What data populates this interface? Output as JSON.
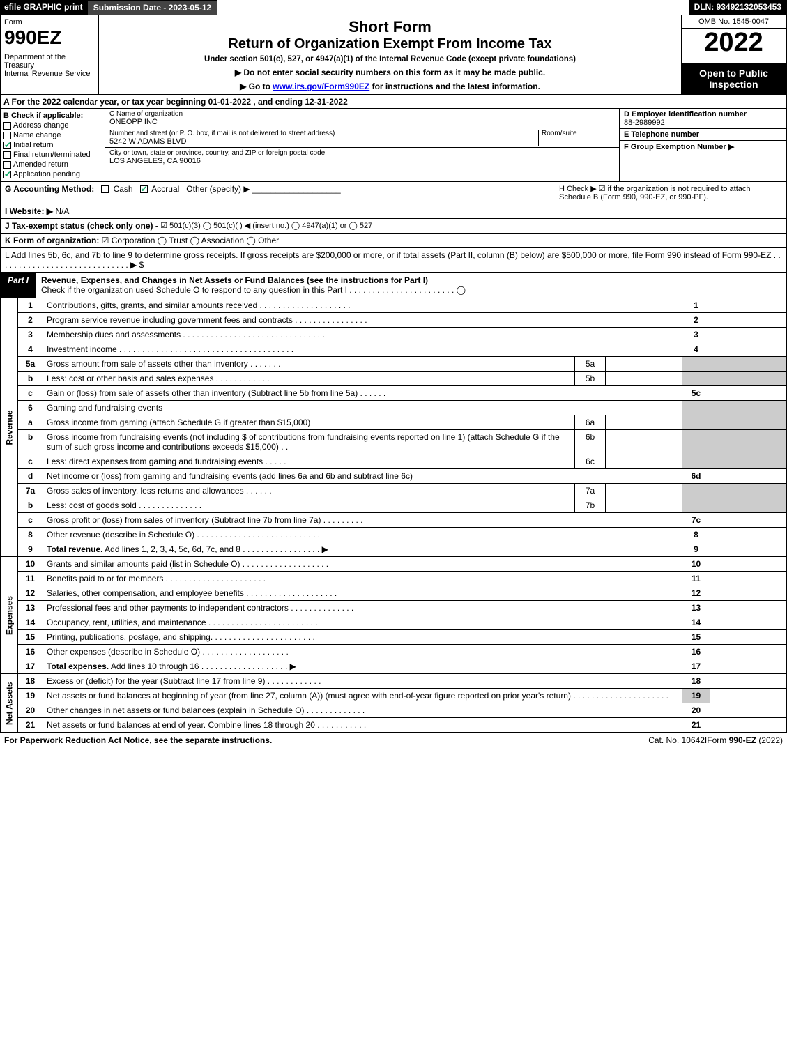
{
  "topbar": {
    "efile": "efile GRAPHIC print",
    "submission": "Submission Date - 2023-05-12",
    "dln": "DLN: 93492132053453"
  },
  "header": {
    "form_label": "Form",
    "form_number": "990EZ",
    "dept": "Department of the Treasury\nInternal Revenue Service",
    "title1": "Short Form",
    "title2": "Return of Organization Exempt From Income Tax",
    "subtitle": "Under section 501(c), 527, or 4947(a)(1) of the Internal Revenue Code (except private foundations)",
    "note1": "▶ Do not enter social security numbers on this form as it may be made public.",
    "note2_pre": "▶ Go to ",
    "note2_link": "www.irs.gov/Form990EZ",
    "note2_post": " for instructions and the latest information.",
    "omb": "OMB No. 1545-0047",
    "year": "2022",
    "open": "Open to Public Inspection"
  },
  "rowA": {
    "text": "A  For the 2022 calendar year, or tax year beginning 01-01-2022 , and ending 12-31-2022"
  },
  "sectionB": {
    "label": "B  Check if applicable:",
    "items": [
      {
        "label": "Address change",
        "checked": false
      },
      {
        "label": "Name change",
        "checked": false
      },
      {
        "label": "Initial return",
        "checked": true
      },
      {
        "label": "Final return/terminated",
        "checked": false
      },
      {
        "label": "Amended return",
        "checked": false
      },
      {
        "label": "Application pending",
        "checked": true
      }
    ]
  },
  "sectionC": {
    "name_label": "C Name of organization",
    "name": "ONEOPP INC",
    "street_label": "Number and street (or P. O. box, if mail is not delivered to street address)",
    "room_label": "Room/suite",
    "street": "5242 W ADAMS BLVD",
    "city_label": "City or town, state or province, country, and ZIP or foreign postal code",
    "city": "LOS ANGELES, CA  90016"
  },
  "sectionD": {
    "ein_label": "D Employer identification number",
    "ein": "88-2989992",
    "phone_label": "E Telephone number",
    "phone": "",
    "group_label": "F Group Exemption Number  ▶",
    "group": ""
  },
  "rowG": {
    "g_label": "G Accounting Method:",
    "cash": "Cash",
    "accrual": "Accrual",
    "other": "Other (specify) ▶",
    "h_text": "H  Check ▶ ☑ if the organization is not required to attach Schedule B (Form 990, 990-EZ, or 990-PF)."
  },
  "rowI": {
    "label": "I Website: ▶",
    "value": "N/A"
  },
  "rowJ": {
    "label": "J Tax-exempt status (check only one) -",
    "opts": "☑ 501(c)(3)  ◯ 501(c)(  ) ◀ (insert no.)  ◯ 4947(a)(1) or  ◯ 527"
  },
  "rowK": {
    "label": "K Form of organization:",
    "opts": "☑ Corporation   ◯ Trust   ◯ Association   ◯ Other"
  },
  "rowL": {
    "text": "L Add lines 5b, 6c, and 7b to line 9 to determine gross receipts. If gross receipts are $200,000 or more, or if total assets (Part II, column (B) below) are $500,000 or more, file Form 990 instead of Form 990-EZ  .  .  .  .  .  .  .  .  .  .  .  .  .  .  .  .  .  .  .  .  .  .  .  .  .  .  .  .  .  ▶ $"
  },
  "partI": {
    "tag": "Part I",
    "title": "Revenue, Expenses, and Changes in Net Assets or Fund Balances (see the instructions for Part I)",
    "check": "Check if the organization used Schedule O to respond to any question in this Part I  .  .  .  .  .  .  .  .  .  .  .  .  .  .  .  .  .  .  .  .  .  .  .  ◯"
  },
  "sections": {
    "revenue_label": "Revenue",
    "expenses_label": "Expenses",
    "netassets_label": "Net Assets"
  },
  "lines": [
    {
      "n": "1",
      "t": "Contributions, gifts, grants, and similar amounts received  .  .  .  .  .  .  .  .  .  .  .  .  .  .  .  .  .  .  .  .",
      "b": "1",
      "sec": "rev"
    },
    {
      "n": "2",
      "t": "Program service revenue including government fees and contracts  .  .  .  .  .  .  .  .  .  .  .  .  .  .  .  .",
      "b": "2",
      "sec": "rev"
    },
    {
      "n": "3",
      "t": "Membership dues and assessments  .  .  .  .  .  .  .  .  .  .  .  .  .  .  .  .  .  .  .  .  .  .  .  .  .  .  .  .  .  .  .",
      "b": "3",
      "sec": "rev"
    },
    {
      "n": "4",
      "t": "Investment income  .  .  .  .  .  .  .  .  .  .  .  .  .  .  .  .  .  .  .  .  .  .  .  .  .  .  .  .  .  .  .  .  .  .  .  .  .  .",
      "b": "4",
      "sec": "rev"
    },
    {
      "n": "5a",
      "t": "Gross amount from sale of assets other than inventory  .  .  .  .  .  .  .",
      "ib": "5a",
      "sec": "rev",
      "shade": true
    },
    {
      "n": "b",
      "t": "Less: cost or other basis and sales expenses  .  .  .  .  .  .  .  .  .  .  .  .",
      "ib": "5b",
      "sec": "rev",
      "shade": true
    },
    {
      "n": "c",
      "t": "Gain or (loss) from sale of assets other than inventory (Subtract line 5b from line 5a)  .  .  .  .  .  .",
      "b": "5c",
      "sec": "rev"
    },
    {
      "n": "6",
      "t": "Gaming and fundraising events",
      "sec": "rev",
      "shade": true,
      "noline": true
    },
    {
      "n": "a",
      "t": "Gross income from gaming (attach Schedule G if greater than $15,000)",
      "ib": "6a",
      "sec": "rev",
      "shade": true
    },
    {
      "n": "b",
      "t": "Gross income from fundraising events (not including $                     of contributions from fundraising events reported on line 1) (attach Schedule G if the sum of such gross income and contributions exceeds $15,000)     .   .",
      "ib": "6b",
      "sec": "rev",
      "shade": true
    },
    {
      "n": "c",
      "t": "Less: direct expenses from gaming and fundraising events  .  .  .  .  .",
      "ib": "6c",
      "sec": "rev",
      "shade": true
    },
    {
      "n": "d",
      "t": "Net income or (loss) from gaming and fundraising events (add lines 6a and 6b and subtract line 6c)",
      "b": "6d",
      "sec": "rev"
    },
    {
      "n": "7a",
      "t": "Gross sales of inventory, less returns and allowances  .  .  .  .  .  .",
      "ib": "7a",
      "sec": "rev",
      "shade": true
    },
    {
      "n": "b",
      "t": "Less: cost of goods sold           .   .   .   .   .   .   .   .   .   .   .   .   .   .",
      "ib": "7b",
      "sec": "rev",
      "shade": true
    },
    {
      "n": "c",
      "t": "Gross profit or (loss) from sales of inventory (Subtract line 7b from line 7a)  .  .  .  .  .  .  .  .  .",
      "b": "7c",
      "sec": "rev"
    },
    {
      "n": "8",
      "t": "Other revenue (describe in Schedule O)  .  .  .  .  .  .  .  .  .  .  .  .  .  .  .  .  .  .  .  .  .  .  .  .  .  .  .",
      "b": "8",
      "sec": "rev"
    },
    {
      "n": "9",
      "t": "Total revenue. Add lines 1, 2, 3, 4, 5c, 6d, 7c, and 8   .   .   .   .   .   .   .   .   .   .   .   .   .   .   .   .   .    ▶",
      "b": "9",
      "sec": "rev",
      "bold": true
    },
    {
      "n": "10",
      "t": "Grants and similar amounts paid (list in Schedule O)  .  .  .  .  .  .  .  .  .  .  .  .  .  .  .  .  .  .  .",
      "b": "10",
      "sec": "exp"
    },
    {
      "n": "11",
      "t": "Benefits paid to or for members      .   .   .   .   .   .   .   .   .   .   .   .   .   .   .   .   .   .   .   .   .   .",
      "b": "11",
      "sec": "exp"
    },
    {
      "n": "12",
      "t": "Salaries, other compensation, and employee benefits  .  .  .  .  .  .  .  .  .  .  .  .  .  .  .  .  .  .  .  .",
      "b": "12",
      "sec": "exp"
    },
    {
      "n": "13",
      "t": "Professional fees and other payments to independent contractors  .  .  .  .  .  .  .  .  .  .  .  .  .  .",
      "b": "13",
      "sec": "exp"
    },
    {
      "n": "14",
      "t": "Occupancy, rent, utilities, and maintenance .  .  .  .  .  .  .  .  .  .  .  .  .  .  .  .  .  .  .  .  .  .  .  .",
      "b": "14",
      "sec": "exp"
    },
    {
      "n": "15",
      "t": "Printing, publications, postage, and shipping.  .  .  .  .  .  .  .  .  .  .  .  .  .  .  .  .  .  .  .  .  .  .",
      "b": "15",
      "sec": "exp"
    },
    {
      "n": "16",
      "t": "Other expenses (describe in Schedule O)     .   .   .   .   .   .   .   .   .   .   .   .   .   .   .   .   .   .   .",
      "b": "16",
      "sec": "exp"
    },
    {
      "n": "17",
      "t": "Total expenses. Add lines 10 through 16      .   .   .   .   .   .   .   .   .   .   .   .   .   .   .   .   .   .   .    ▶",
      "b": "17",
      "sec": "exp",
      "bold": true
    },
    {
      "n": "18",
      "t": "Excess or (deficit) for the year (Subtract line 17 from line 9)         .   .   .   .   .   .   .   .   .   .   .   .",
      "b": "18",
      "sec": "na"
    },
    {
      "n": "19",
      "t": "Net assets or fund balances at beginning of year (from line 27, column (A)) (must agree with end-of-year figure reported on prior year's return) .  .  .  .  .  .  .  .  .  .  .  .  .  .  .  .  .  .  .  .  .",
      "b": "19",
      "sec": "na",
      "shadepre": true
    },
    {
      "n": "20",
      "t": "Other changes in net assets or fund balances (explain in Schedule O) .  .  .  .  .  .  .  .  .  .  .  .  .",
      "b": "20",
      "sec": "na"
    },
    {
      "n": "21",
      "t": "Net assets or fund balances at end of year. Combine lines 18 through 20 .  .  .  .  .  .  .  .  .  .  .",
      "b": "21",
      "sec": "na"
    }
  ],
  "footer": {
    "left": "For Paperwork Reduction Act Notice, see the separate instructions.",
    "mid": "Cat. No. 10642I",
    "right_pre": "Form ",
    "right_bold": "990-EZ",
    "right_post": " (2022)"
  }
}
